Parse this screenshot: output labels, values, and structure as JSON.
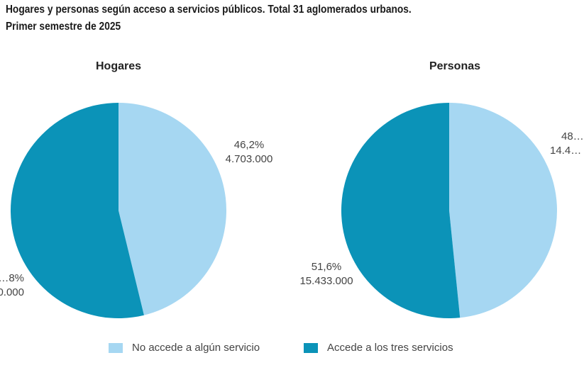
{
  "title_line1": "Hogares y personas según acceso a servicios públicos. Total 31 aglomerados urbanos.",
  "title_line2": "Primer semestre de 2025",
  "colors": {
    "no_accede": "#a6d7f2",
    "accede": "#0b93b8"
  },
  "chart_data": [
    {
      "type": "pie",
      "title": "Hogares",
      "categories": [
        "No accede a algún servicio",
        "Accede a los tres servicios"
      ],
      "values": [
        46.2,
        53.8
      ],
      "unit": "%",
      "labels": [
        {
          "pct": "46,2%",
          "count": "4.703.000"
        },
        {
          "pct": "…8%",
          "count": "…0.000"
        }
      ]
    },
    {
      "type": "pie",
      "title": "Personas",
      "categories": [
        "No accede a algún servicio",
        "Accede a los tres servicios"
      ],
      "values": [
        48.4,
        51.6
      ],
      "unit": "%",
      "labels": [
        {
          "pct": "48…",
          "count": "14.4…"
        },
        {
          "pct": "51,6%",
          "count": "15.433.000"
        }
      ]
    }
  ],
  "legend": [
    {
      "label": "No accede a algún servicio",
      "color_key": "no_accede"
    },
    {
      "label": "Accede a los tres servicios",
      "color_key": "accede"
    }
  ]
}
